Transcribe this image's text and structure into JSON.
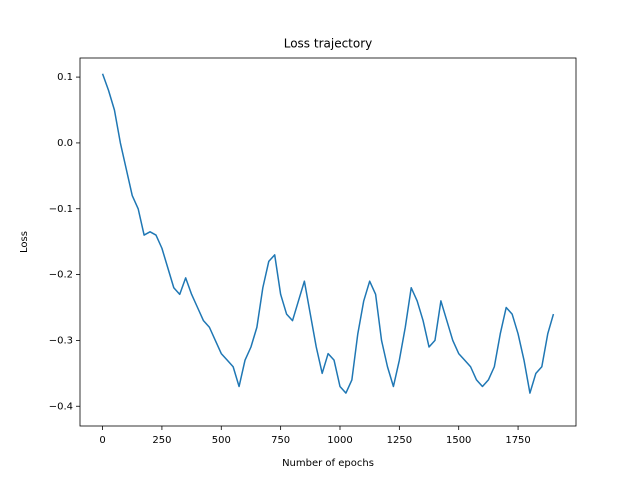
{
  "chart_data": {
    "type": "line",
    "title": "Loss trajectory",
    "x_label": "Number of epochs",
    "y_label": "Loss",
    "x": [
      0,
      25,
      50,
      75,
      100,
      125,
      150,
      175,
      200,
      225,
      250,
      275,
      300,
      325,
      350,
      375,
      400,
      425,
      450,
      475,
      500,
      525,
      550,
      575,
      600,
      625,
      650,
      675,
      700,
      725,
      750,
      775,
      800,
      825,
      850,
      875,
      900,
      925,
      950,
      975,
      1000,
      1025,
      1050,
      1075,
      1100,
      1125,
      1150,
      1175,
      1200,
      1225,
      1250,
      1275,
      1300,
      1325,
      1350,
      1375,
      1400,
      1425,
      1450,
      1475,
      1500,
      1525,
      1550,
      1575,
      1600,
      1625,
      1650,
      1675,
      1700,
      1725,
      1750,
      1775,
      1800,
      1825,
      1850,
      1875,
      1899
    ],
    "series": [
      {
        "name": "Loss",
        "color": "#1f77b4",
        "values": [
          0.105,
          0.08,
          0.05,
          0.0,
          -0.04,
          -0.08,
          -0.1,
          -0.14,
          -0.135,
          -0.14,
          -0.16,
          -0.19,
          -0.22,
          -0.23,
          -0.205,
          -0.23,
          -0.25,
          -0.27,
          -0.28,
          -0.3,
          -0.32,
          -0.33,
          -0.34,
          -0.37,
          -0.33,
          -0.31,
          -0.28,
          -0.22,
          -0.18,
          -0.17,
          -0.23,
          -0.26,
          -0.27,
          -0.24,
          -0.21,
          -0.26,
          -0.31,
          -0.35,
          -0.32,
          -0.33,
          -0.37,
          -0.38,
          -0.36,
          -0.29,
          -0.24,
          -0.21,
          -0.23,
          -0.3,
          -0.34,
          -0.37,
          -0.33,
          -0.28,
          -0.22,
          -0.24,
          -0.27,
          -0.31,
          -0.3,
          -0.24,
          -0.27,
          -0.3,
          -0.32,
          -0.33,
          -0.34,
          -0.36,
          -0.37,
          -0.36,
          -0.34,
          -0.29,
          -0.25,
          -0.26,
          -0.29,
          -0.33,
          -0.38,
          -0.35,
          -0.34,
          -0.29,
          -0.26
        ]
      }
    ],
    "xlim": [
      -95,
      1994
    ],
    "ylim": [
      -0.43,
      0.129
    ],
    "xticks": [
      0,
      250,
      500,
      750,
      1000,
      1250,
      1500,
      1750
    ],
    "yticks": [
      {
        "value": -0.4,
        "label": "−0.4"
      },
      {
        "value": -0.3,
        "label": "−0.3"
      },
      {
        "value": -0.2,
        "label": "−0.2"
      },
      {
        "value": -0.1,
        "label": "−0.1"
      },
      {
        "value": 0,
        "label": "0.0"
      },
      0.1
    ],
    "grid": false
  }
}
